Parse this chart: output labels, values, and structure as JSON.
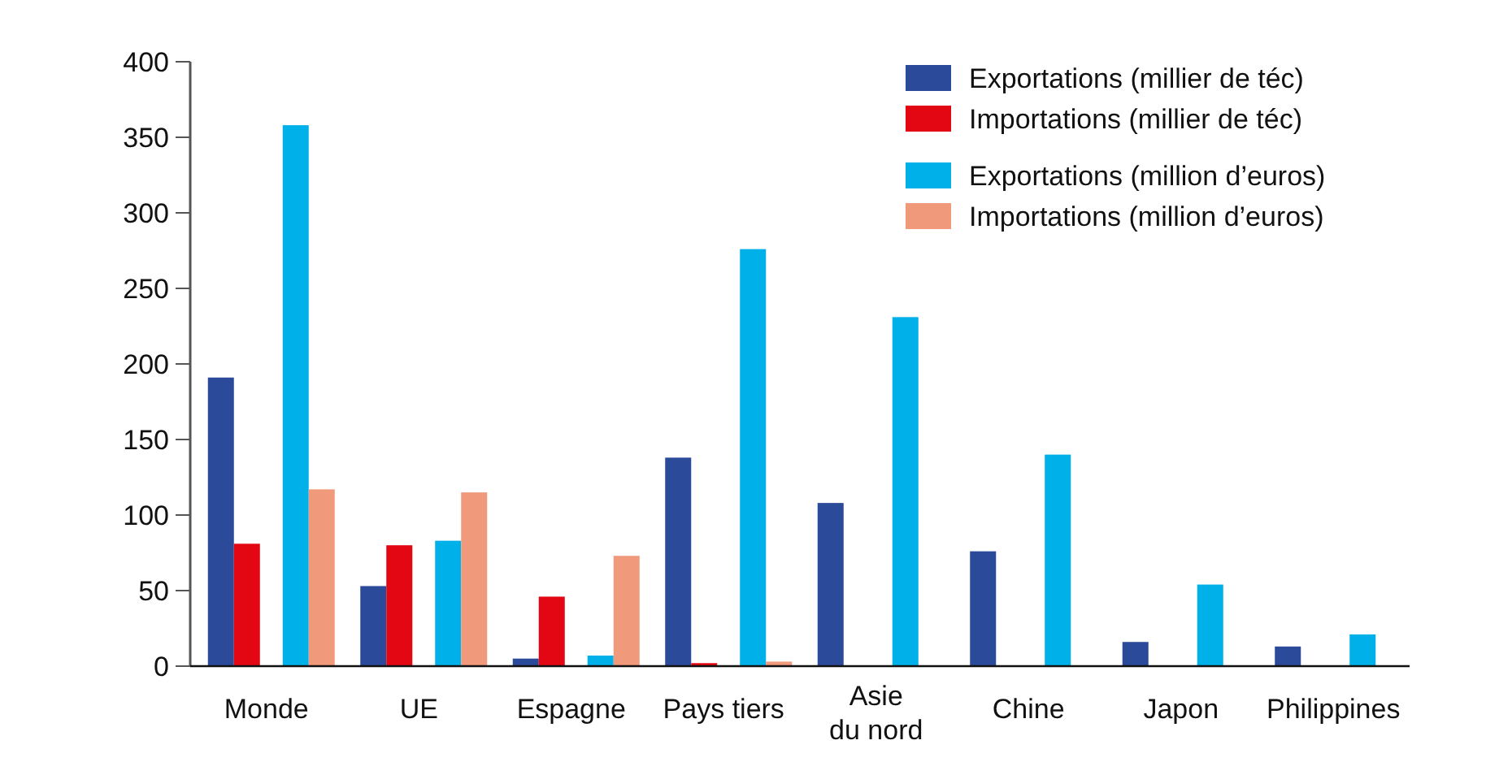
{
  "chart_data": {
    "type": "bar",
    "categories": [
      "Monde",
      "UE",
      "Espagne",
      "Pays tiers",
      "Asie du nord",
      "Chine",
      "Japon",
      "Philippines"
    ],
    "series": [
      {
        "name": "Exportations (millier de téc)",
        "color": "#2b4a99",
        "values": [
          191,
          53,
          5,
          138,
          108,
          76,
          16,
          13
        ]
      },
      {
        "name": "Importations (millier de téc)",
        "color": "#e30613",
        "values": [
          81,
          80,
          46,
          2,
          null,
          null,
          null,
          null
        ]
      },
      {
        "name": "Exportations (million d’euros)",
        "color": "#00b0e8",
        "values": [
          358,
          83,
          7,
          276,
          231,
          140,
          54,
          21
        ]
      },
      {
        "name": "Importations (million d’euros)",
        "color": "#f0997b",
        "values": [
          117,
          115,
          73,
          3,
          null,
          null,
          null,
          null
        ]
      }
    ],
    "ylim": [
      0,
      400
    ],
    "yticks": [
      0,
      50,
      100,
      150,
      200,
      250,
      300,
      350,
      400
    ],
    "legend": "top right"
  }
}
